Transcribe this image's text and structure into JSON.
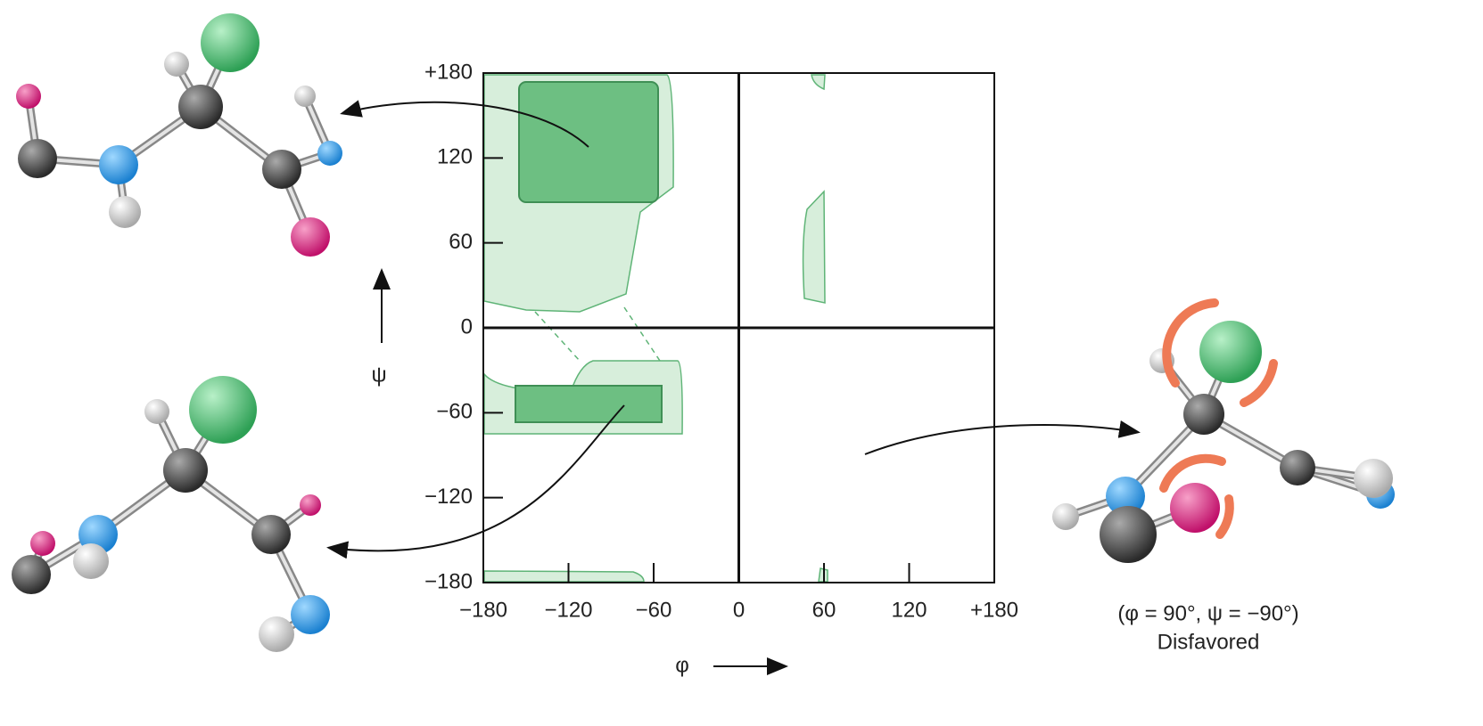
{
  "plot": {
    "xlim": [
      -180,
      180
    ],
    "ylim": [
      -180,
      180
    ],
    "xticks": [
      {
        "value": -180,
        "label": "−180"
      },
      {
        "value": -120,
        "label": "−120"
      },
      {
        "value": -60,
        "label": "−60"
      },
      0,
      60,
      120,
      {
        "value": 180,
        "label": "+180"
      }
    ],
    "yticks": [
      {
        "value": 180,
        "label": "+180"
      },
      120,
      60,
      0,
      {
        "value": -60,
        "label": "−60"
      },
      {
        "value": -120,
        "label": "−120"
      },
      {
        "value": -180,
        "label": "−180"
      }
    ],
    "x_label": "φ",
    "y_label": "ψ"
  },
  "caption": {
    "angles": "(φ = 90°, ψ = −90°)",
    "verdict": "Disfavored"
  }
}
